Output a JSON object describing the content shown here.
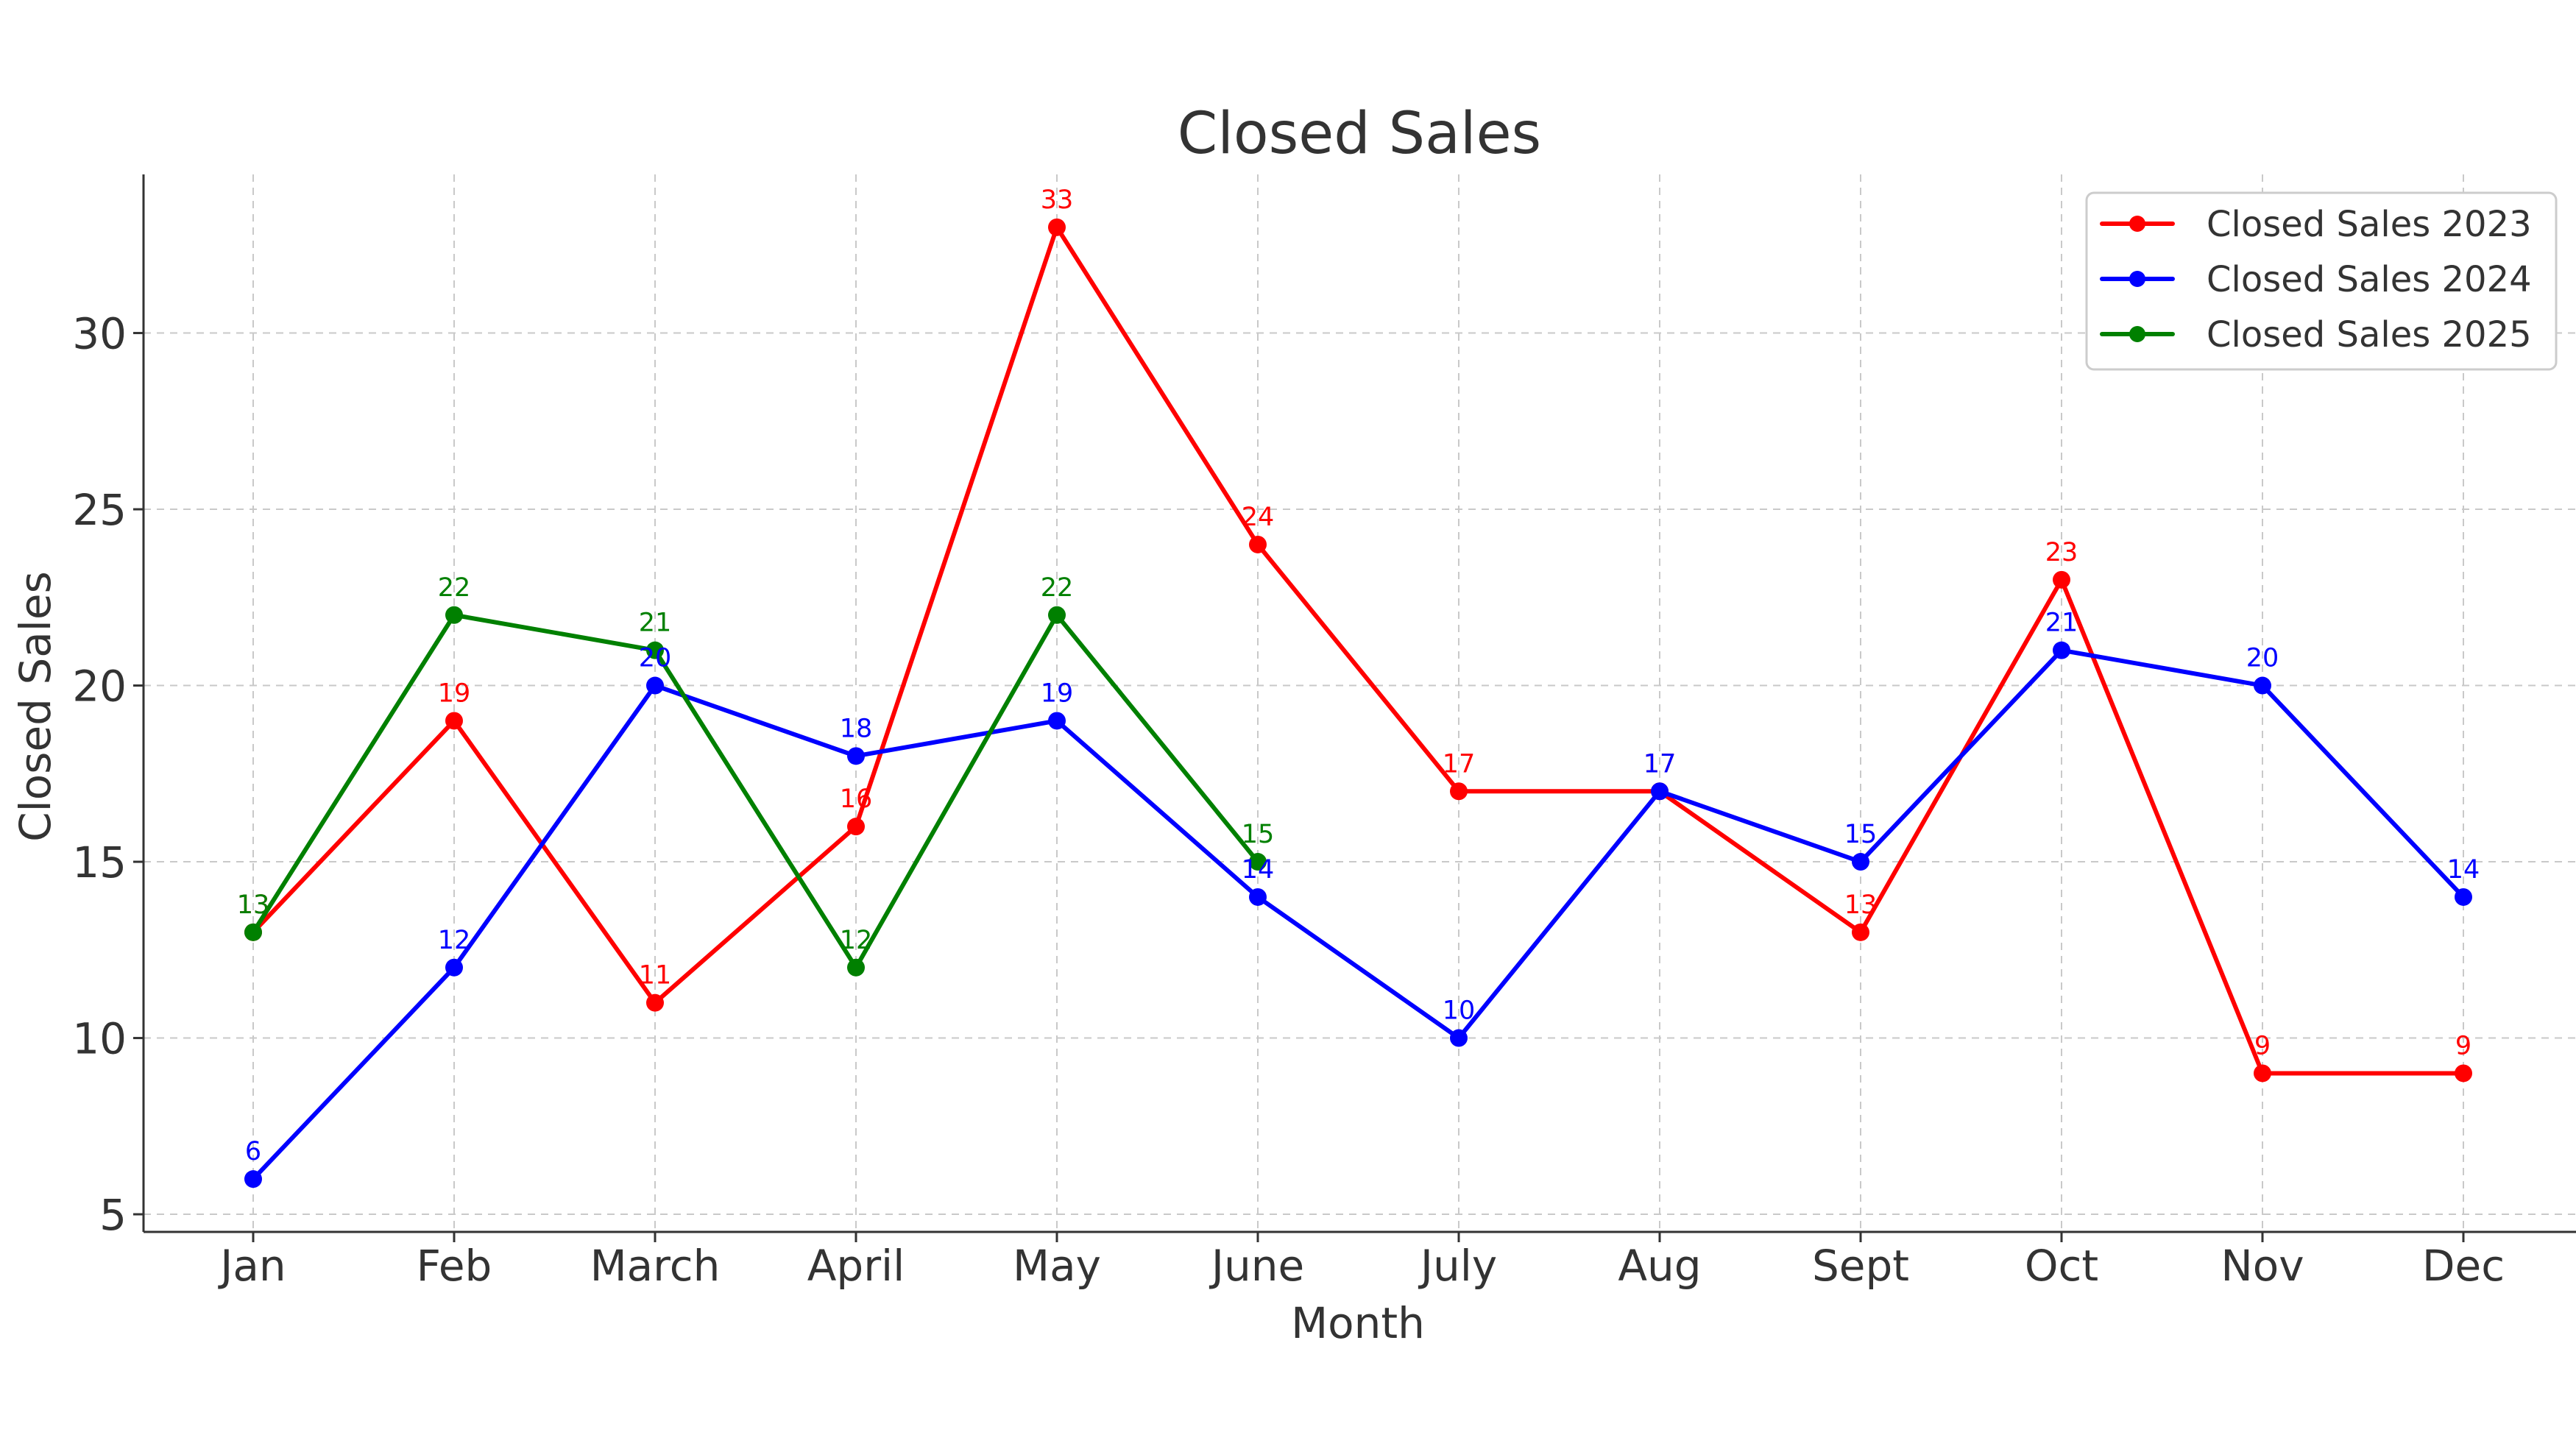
{
  "chart_data": {
    "type": "line",
    "title": "Closed Sales",
    "xlabel": "Month",
    "ylabel": "Closed Sales",
    "categories": [
      "Jan",
      "Feb",
      "March",
      "April",
      "May",
      "June",
      "July",
      "Aug",
      "Sept",
      "Oct",
      "Nov",
      "Dec"
    ],
    "ylim": [
      4.5,
      34.5
    ],
    "yticks": [
      5,
      10,
      15,
      20,
      25,
      30
    ],
    "grid": true,
    "legend_position": "top-right",
    "series": [
      {
        "name": "Closed Sales 2023",
        "color": "#ff0000",
        "values": [
          13,
          19,
          11,
          16,
          33,
          24,
          17,
          17,
          13,
          23,
          9,
          9
        ],
        "labels": [
          "13",
          "19",
          "11",
          "16",
          "33",
          "24",
          "17",
          "17",
          "13",
          "23",
          "9",
          "9"
        ]
      },
      {
        "name": "Closed Sales 2024",
        "color": "#0000ff",
        "values": [
          6,
          12,
          20,
          18,
          19,
          14,
          10,
          17,
          15,
          21,
          20,
          14
        ],
        "labels": [
          "6",
          "12",
          "20",
          "18",
          "19",
          "14",
          "10",
          "17",
          "15",
          "21",
          "20",
          "14"
        ]
      },
      {
        "name": "Closed Sales 2025",
        "color": "#008000",
        "values": [
          13,
          22,
          21,
          12,
          22,
          15,
          null,
          null,
          null,
          null,
          null,
          null
        ],
        "labels": [
          "13",
          "22",
          "21",
          "12",
          "22",
          "15",
          null,
          null,
          null,
          null,
          null,
          null
        ]
      }
    ]
  }
}
